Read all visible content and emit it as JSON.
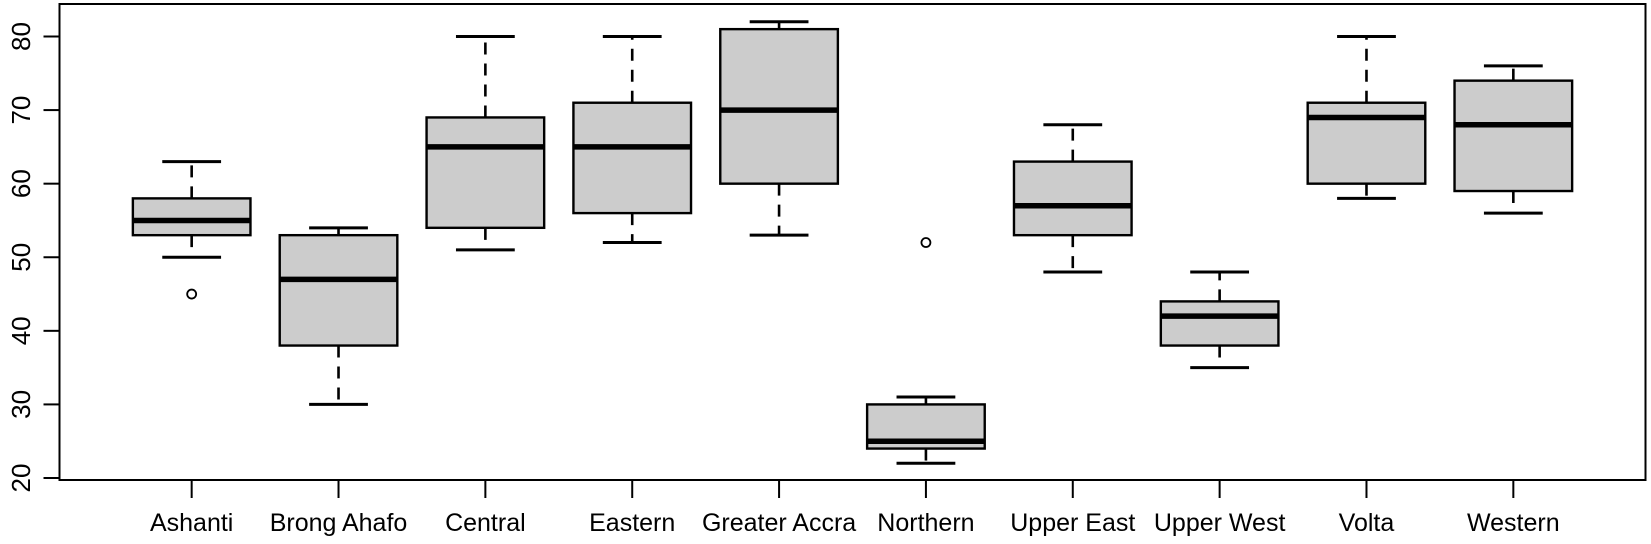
{
  "chart_data": {
    "type": "boxplot",
    "title": "",
    "xlabel": "",
    "ylabel": "",
    "legend": "none",
    "grid": false,
    "x_axis": {
      "categories": [
        "Ashanti",
        "Brong Ahafo",
        "Central",
        "Eastern",
        "Greater Accra",
        "Northern",
        "Upper East",
        "Upper West",
        "Volta",
        "Western"
      ]
    },
    "y_axis": {
      "ticks": [
        20,
        30,
        40,
        50,
        60,
        70,
        80
      ],
      "range_shown": [
        18.5,
        84.5
      ],
      "tick_label_rotation_deg": -90
    },
    "boxes": [
      {
        "label": "Ashanti",
        "whisker_low": 50,
        "q1": 53,
        "median": 55,
        "q3": 58,
        "whisker_high": 63,
        "outliers": [
          45
        ]
      },
      {
        "label": "Brong Ahafo",
        "whisker_low": 30,
        "q1": 38,
        "median": 47,
        "q3": 53,
        "whisker_high": 54,
        "outliers": []
      },
      {
        "label": "Central",
        "whisker_low": 51,
        "q1": 54,
        "median": 65,
        "q3": 69,
        "whisker_high": 80,
        "outliers": []
      },
      {
        "label": "Eastern",
        "whisker_low": 52,
        "q1": 56,
        "median": 65,
        "q3": 71,
        "whisker_high": 80,
        "outliers": []
      },
      {
        "label": "Greater Accra",
        "whisker_low": 53,
        "q1": 60,
        "median": 70,
        "q3": 81,
        "whisker_high": 82,
        "outliers": []
      },
      {
        "label": "Northern",
        "whisker_low": 22,
        "q1": 24,
        "median": 25,
        "q3": 30,
        "whisker_high": 31,
        "outliers": [
          52
        ]
      },
      {
        "label": "Upper East",
        "whisker_low": 48,
        "q1": 53,
        "median": 57,
        "q3": 63,
        "whisker_high": 68,
        "outliers": []
      },
      {
        "label": "Upper West",
        "whisker_low": 35,
        "q1": 38,
        "median": 42,
        "q3": 44,
        "whisker_high": 48,
        "outliers": []
      },
      {
        "label": "Volta",
        "whisker_low": 58,
        "q1": 60,
        "median": 69,
        "q3": 71,
        "whisker_high": 80,
        "outliers": []
      },
      {
        "label": "Western",
        "whisker_low": 56,
        "q1": 59,
        "median": 68,
        "q3": 74,
        "whisker_high": 76,
        "outliers": []
      }
    ],
    "style": {
      "box_fill": "#cccccc",
      "line_color": "#000000",
      "background": "#ffffff",
      "whisker_line_style": "dashed"
    }
  }
}
